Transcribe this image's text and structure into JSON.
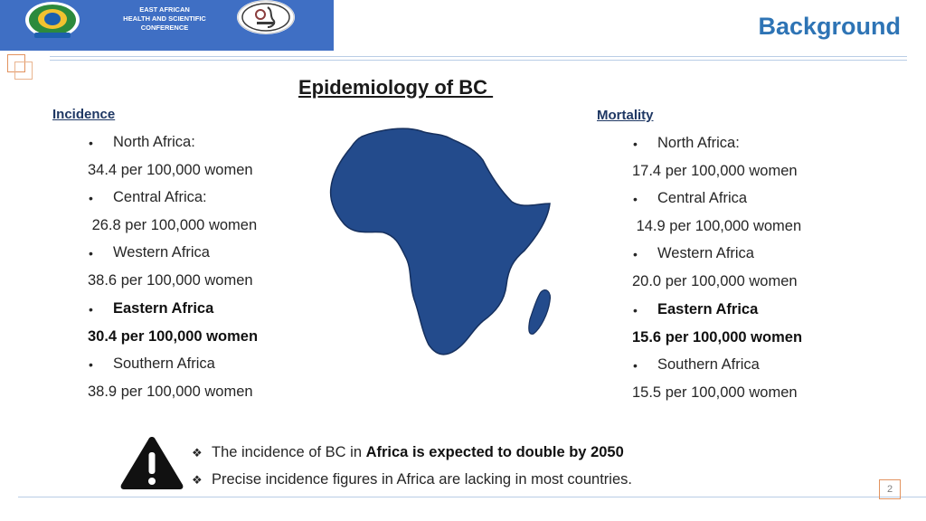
{
  "header": {
    "org_line1": "EAST AFRICAN",
    "org_line2": "HEALTH AND SCIENTIFIC CONFERENCE",
    "section_title": "Background",
    "banner_color": "#3f6fc4",
    "accent_color": "#2e74b5"
  },
  "slide": {
    "title": "Epidemiology of BC "
  },
  "incidence": {
    "heading": "Incidence",
    "items": [
      {
        "region": "North Africa:",
        "rate": "34.4 per 100,000 women"
      },
      {
        "region": "Central Africa:",
        "rate": " 26.8 per 100,000 women"
      },
      {
        "region": "Western Africa",
        "rate": "38.6 per 100,000 women"
      },
      {
        "region": "Eastern Africa",
        "rate": "30.4 per 100,000 women"
      },
      {
        "region": "Southern Africa",
        "rate": "38.9 per 100,000 women"
      }
    ]
  },
  "mortality": {
    "heading": "Mortality",
    "items": [
      {
        "region": "North Africa:",
        "rate": "17.4 per 100,000 women"
      },
      {
        "region": "Central Africa",
        "rate": " 14.9 per 100,000 women"
      },
      {
        "region": "Western Africa",
        "rate": "20.0 per 100,000 women"
      },
      {
        "region": "Eastern Africa",
        "rate": "15.6 per 100,000 women"
      },
      {
        "region": "Southern Africa",
        "rate": "15.5 per 100,000 women"
      }
    ]
  },
  "notes": {
    "n1_prefix": "The incidence of BC in ",
    "n1_bold": "Africa is expected to double by 2050",
    "n2": "Precise incidence figures in Africa are lacking in most countries."
  },
  "icons": {
    "warning": "warning-icon",
    "map": "africa-map-icon",
    "bullet": "diamond-bullet-icon"
  },
  "page_number": "2"
}
